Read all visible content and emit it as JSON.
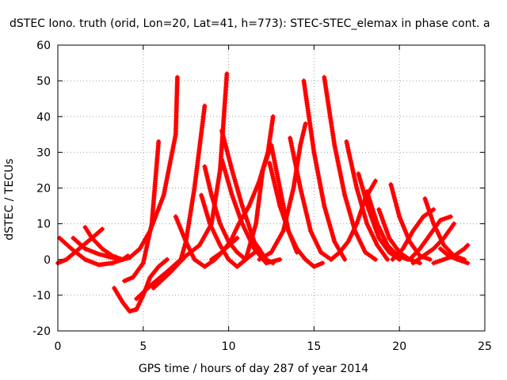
{
  "chart_data": {
    "type": "scatter",
    "title": "dSTEC Iono. truth (orid, Lon=20, Lat=41, h=773): STEC-STEC_elemax in phase cont. a",
    "xlabel": "GPS time / hours of day 287 of year 2014",
    "ylabel": "dSTEC  / TECUs",
    "xlim": [
      0,
      25
    ],
    "ylim": [
      -20,
      60
    ],
    "xticks": [
      "0",
      "5",
      "10",
      "15",
      "20",
      "25"
    ],
    "yticks": [
      "-20",
      "-10",
      "0",
      "10",
      "20",
      "30",
      "40",
      "50",
      "60"
    ],
    "grid": true,
    "marker": "plus",
    "color": "#ff0000",
    "series": [
      {
        "x": [
          0.0,
          0.5,
          1.0,
          1.5,
          2.0,
          2.6
        ],
        "y": [
          -1,
          0,
          2,
          4,
          6,
          8.5
        ]
      },
      {
        "x": [
          0.1,
          0.8,
          1.6,
          2.4,
          3.2,
          3.8,
          4.1
        ],
        "y": [
          6,
          3,
          0,
          -1.5,
          -1,
          0,
          1
        ]
      },
      {
        "x": [
          0.9,
          1.6,
          2.4,
          3.2,
          3.8
        ],
        "y": [
          6,
          3,
          1.5,
          0.5,
          0
        ]
      },
      {
        "x": [
          1.6,
          2.0,
          2.6,
          3.2,
          3.8,
          4.2,
          4.8,
          5.4,
          6.2,
          6.9,
          7.0
        ],
        "y": [
          9,
          6,
          3,
          1,
          0,
          0.5,
          3,
          8,
          18,
          35,
          51
        ]
      },
      {
        "x": [
          3.3,
          3.8,
          4.2,
          4.6,
          5.0,
          5.4,
          5.9,
          6.4
        ],
        "y": [
          -8,
          -12,
          -14.5,
          -14,
          -10,
          -5,
          -2,
          0
        ]
      },
      {
        "x": [
          3.9,
          4.4,
          5.0,
          5.5,
          5.9
        ],
        "y": [
          -6,
          -5,
          -1,
          10,
          33
        ]
      },
      {
        "x": [
          4.6,
          5.5,
          6.5,
          7.2,
          7.5,
          8.0,
          8.6
        ],
        "y": [
          -11,
          -7,
          -3,
          0,
          5,
          20,
          43
        ]
      },
      {
        "x": [
          5.6,
          6.5,
          7.5,
          8.3,
          9.0,
          9.5,
          9.9
        ],
        "y": [
          -8,
          -4,
          1,
          4,
          10,
          25,
          52
        ]
      },
      {
        "x": [
          6.9,
          7.5,
          8.0,
          8.6,
          9.2,
          9.8,
          10.5
        ],
        "y": [
          12,
          5,
          0,
          -2,
          0,
          3,
          6
        ]
      },
      {
        "x": [
          8.4,
          8.9,
          9.5,
          10.0,
          10.5,
          11.0,
          11.8
        ],
        "y": [
          18,
          10,
          4,
          0,
          -2,
          0,
          3
        ]
      },
      {
        "x": [
          8.6,
          9.0,
          9.5,
          10.0,
          10.5,
          11.0
        ],
        "y": [
          26,
          18,
          10,
          5,
          2,
          0
        ]
      },
      {
        "x": [
          9.0,
          9.6,
          10.1,
          10.6,
          11.2,
          11.8,
          12.3,
          12.6
        ],
        "y": [
          0,
          2,
          5,
          10,
          15,
          22,
          30,
          40
        ]
      },
      {
        "x": [
          9.6,
          10.2,
          10.8,
          11.5,
          12.2,
          12.6
        ],
        "y": [
          36,
          25,
          15,
          5,
          0,
          -1
        ]
      },
      {
        "x": [
          9.6,
          10.2,
          10.8,
          11.5,
          12.2,
          13.0
        ],
        "y": [
          28,
          18,
          10,
          3,
          -1,
          0
        ]
      },
      {
        "x": [
          11.0,
          11.6,
          12.0,
          12.5,
          13.0,
          13.5,
          14.0
        ],
        "y": [
          0,
          10,
          25,
          32,
          20,
          8,
          2
        ]
      },
      {
        "x": [
          11.8,
          12.5,
          13.2,
          13.8,
          14.2,
          14.5
        ],
        "y": [
          0,
          2,
          8,
          20,
          32,
          38
        ]
      },
      {
        "x": [
          12.4,
          13.0,
          13.5,
          14.0,
          14.5,
          15.0,
          15.5
        ],
        "y": [
          27,
          15,
          8,
          3,
          0,
          -2,
          -1
        ]
      },
      {
        "x": [
          13.6,
          14.2,
          14.8,
          15.4,
          16.0
        ],
        "y": [
          34,
          20,
          8,
          2,
          0
        ]
      },
      {
        "x": [
          14.4,
          15.0,
          15.6,
          16.2,
          16.8
        ],
        "y": [
          50,
          30,
          15,
          5,
          0
        ]
      },
      {
        "x": [
          15.6,
          16.2,
          16.8,
          17.4,
          18.0,
          18.6
        ],
        "y": [
          51,
          32,
          18,
          8,
          2,
          0
        ]
      },
      {
        "x": [
          16.0,
          16.5,
          17.0,
          17.5,
          18.0,
          18.6
        ],
        "y": [
          0,
          2,
          5,
          10,
          17,
          22
        ]
      },
      {
        "x": [
          16.9,
          17.5,
          18.1,
          18.7,
          19.3
        ],
        "y": [
          33,
          20,
          10,
          4,
          0
        ]
      },
      {
        "x": [
          17.6,
          18.2,
          18.8,
          19.4,
          20.0
        ],
        "y": [
          24,
          14,
          6,
          2,
          0
        ]
      },
      {
        "x": [
          18.1,
          18.7,
          19.3,
          19.9,
          20.5
        ],
        "y": [
          19,
          10,
          4,
          1,
          0
        ]
      },
      {
        "x": [
          18.8,
          19.4,
          20.0,
          20.6,
          21.2
        ],
        "y": [
          14,
          6,
          2,
          0,
          -1
        ]
      },
      {
        "x": [
          19.5,
          20.0,
          20.6,
          21.2,
          21.8
        ],
        "y": [
          21,
          12,
          5,
          1,
          0
        ]
      },
      {
        "x": [
          19.6,
          20.2,
          20.8,
          21.4,
          22.0
        ],
        "y": [
          0,
          3,
          8,
          12,
          14
        ]
      },
      {
        "x": [
          20.6,
          21.2,
          21.8,
          22.4,
          23.0
        ],
        "y": [
          0,
          3,
          7,
          11,
          12
        ]
      },
      {
        "x": [
          21.5,
          22.0,
          22.6,
          23.2,
          23.8
        ],
        "y": [
          17,
          10,
          4,
          1,
          0
        ]
      },
      {
        "x": [
          22.0,
          22.6,
          23.2,
          23.8,
          24.0
        ],
        "y": [
          -1,
          0,
          1,
          3,
          4
        ]
      },
      {
        "x": [
          22.4,
          22.9,
          23.4,
          24.0
        ],
        "y": [
          3,
          1,
          0,
          -1
        ]
      },
      {
        "x": [
          20.8,
          21.4,
          22.0,
          22.6,
          23.2
        ],
        "y": [
          -1,
          1,
          3,
          6,
          10
        ]
      }
    ]
  }
}
